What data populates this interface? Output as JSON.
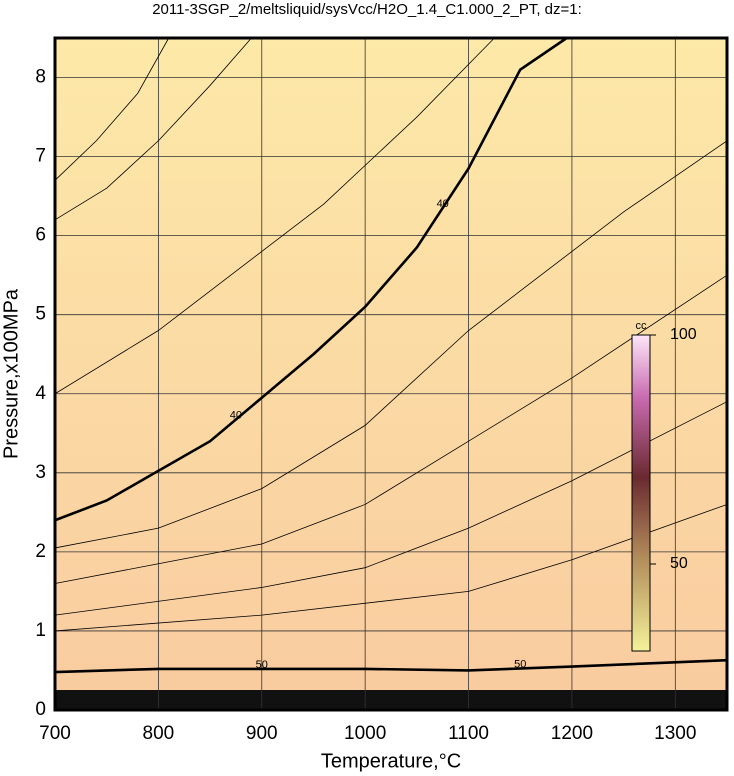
{
  "chart_data": {
    "type": "contour",
    "title": "2011-3SGP_2/meltsliquid/sysVcc/H2O_1.4_C1.000_2_PT, dz=1:",
    "x_label": "Temperature,°C",
    "y_label": "Pressure,x100MPa",
    "xlim": [
      700,
      1350
    ],
    "ylim": [
      0,
      8.5
    ],
    "xticks": [
      700,
      800,
      900,
      1000,
      1100,
      1200,
      1300
    ],
    "yticks": [
      0,
      1,
      2,
      3,
      4,
      5,
      6,
      7,
      8
    ],
    "grid": true,
    "contours": [
      {
        "level": 40,
        "x": [
          700,
          750,
          790,
          850,
          900,
          950,
          1000,
          1050,
          1100,
          1150,
          1195
        ],
        "y": [
          2.4,
          2.65,
          2.95,
          3.4,
          3.95,
          4.5,
          5.1,
          5.85,
          6.85,
          8.1,
          8.5
        ]
      },
      {
        "level": 50,
        "x": [
          700,
          800,
          1000,
          1100,
          1200,
          1350
        ],
        "y": [
          0.48,
          0.52,
          0.52,
          0.5,
          0.55,
          0.63
        ]
      },
      {
        "x": [
          700,
          800,
          900,
          960,
          1050,
          1125
        ],
        "y": [
          4.0,
          4.8,
          5.8,
          6.4,
          7.5,
          8.5
        ]
      },
      {
        "x": [
          700,
          750,
          800,
          850,
          890
        ],
        "y": [
          6.2,
          6.6,
          7.2,
          7.9,
          8.5
        ]
      },
      {
        "x": [
          700,
          740,
          780,
          810
        ],
        "y": [
          6.7,
          7.2,
          7.8,
          8.5
        ]
      },
      {
        "x": [
          700,
          800,
          900,
          1000,
          1100,
          1150,
          1250,
          1350
        ],
        "y": [
          2.05,
          2.3,
          2.8,
          3.6,
          4.8,
          5.3,
          6.3,
          7.2
        ]
      },
      {
        "x": [
          700,
          800,
          900,
          1000,
          1100,
          1200,
          1350
        ],
        "y": [
          1.6,
          1.85,
          2.1,
          2.6,
          3.4,
          4.2,
          5.5
        ]
      },
      {
        "x": [
          700,
          900,
          1000,
          1100,
          1200,
          1350
        ],
        "y": [
          1.2,
          1.55,
          1.8,
          2.3,
          2.9,
          3.9
        ]
      },
      {
        "x": [
          700,
          900,
          1100,
          1200,
          1350
        ],
        "y": [
          1.0,
          1.2,
          1.5,
          1.9,
          2.6
        ]
      }
    ],
    "colorbar_label": "cc",
    "clim": [
      31,
      100
    ],
    "cticks": [
      50,
      100
    ]
  }
}
